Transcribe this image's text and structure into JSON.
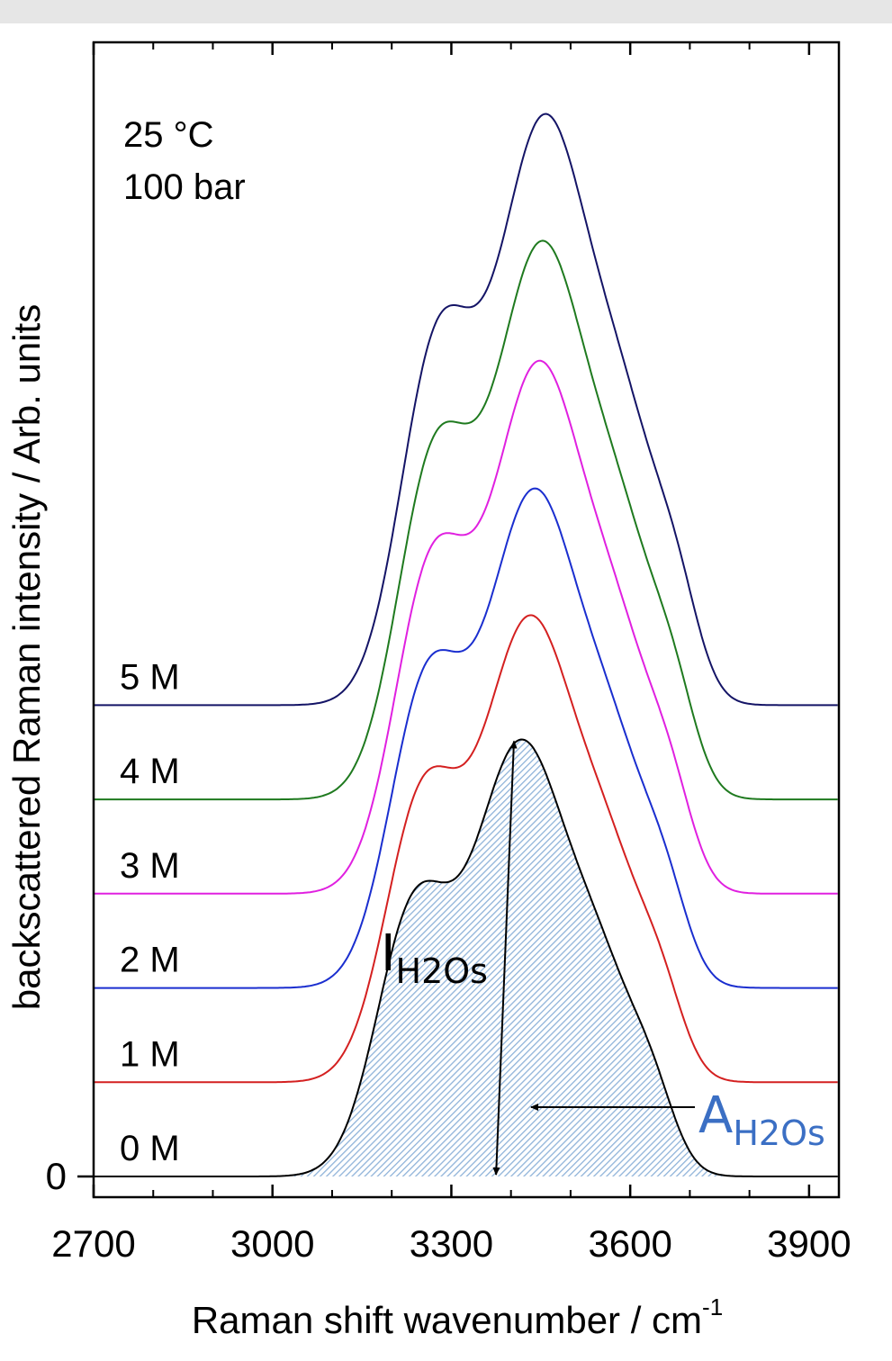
{
  "chart_data": {
    "type": "line",
    "xlabel": "Raman shift wavenumber / cm",
    "xlabel_superscript": "-1",
    "ylabel": "backscattered Raman intensity / Arb. units",
    "xlim": [
      2700,
      3950
    ],
    "ylim": [
      0,
      1.4
    ],
    "x_ticks": [
      "2700",
      "3000",
      "3300",
      "3600",
      "3900"
    ],
    "y_ticks": [
      "0"
    ],
    "conditions": [
      "25 °C",
      "100 bar"
    ],
    "series": [
      {
        "name": "0 M",
        "color": "#000000",
        "offset": 0.0,
        "peak": 3410,
        "height": 0.51,
        "filled": true
      },
      {
        "name": "1 M",
        "color": "#d42020",
        "offset": 0.11,
        "peak": 3425,
        "height": 0.545
      },
      {
        "name": "2 M",
        "color": "#1a2ecf",
        "offset": 0.22,
        "peak": 3432,
        "height": 0.583
      },
      {
        "name": "3 M",
        "color": "#e020e0",
        "offset": 0.33,
        "peak": 3440,
        "height": 0.622
      },
      {
        "name": "4 M",
        "color": "#1f7a1f",
        "offset": 0.44,
        "peak": 3445,
        "height": 0.652
      },
      {
        "name": "5 M",
        "color": "#141466",
        "offset": 0.55,
        "peak": 3450,
        "height": 0.69
      }
    ],
    "annotations": {
      "intensity": {
        "main": "I",
        "sub": "H2Os",
        "color": "#000000"
      },
      "area": {
        "main": "A",
        "sub": "H2Os",
        "color": "#3b6fc4"
      }
    },
    "fill_color": "#8fb3d9"
  }
}
